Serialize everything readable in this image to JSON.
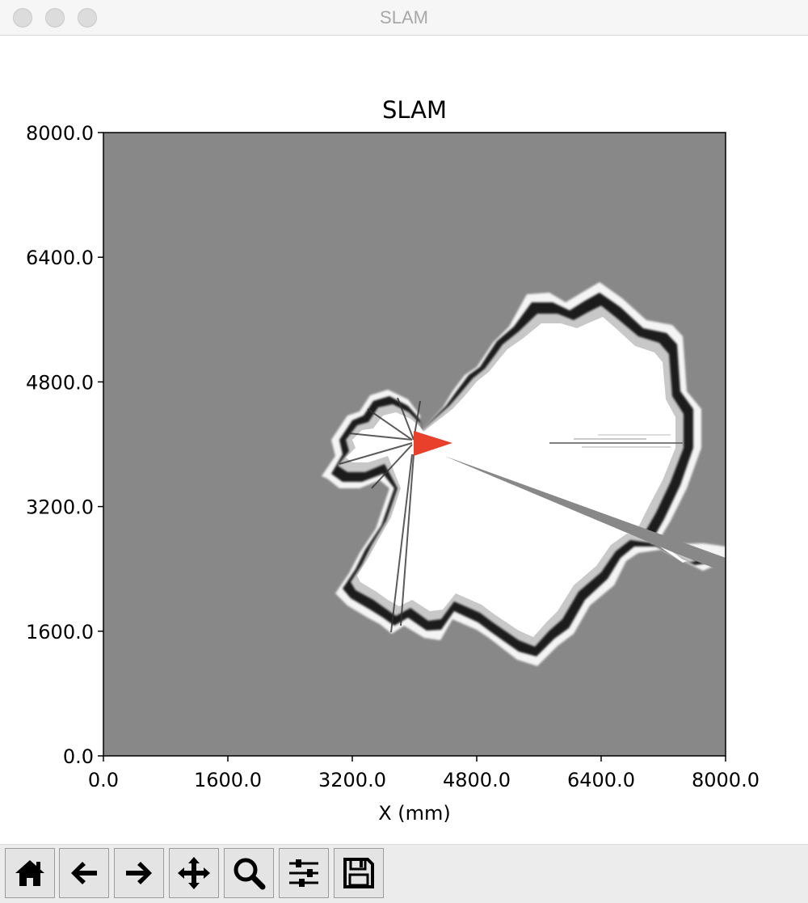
{
  "window": {
    "title": "SLAM"
  },
  "chart_data": {
    "type": "heatmap",
    "title": "SLAM",
    "xlabel": "X (mm)",
    "ylabel": "",
    "xlim": [
      0,
      8000
    ],
    "ylim": [
      0,
      8000
    ],
    "x_ticks": [
      "0.0",
      "1600.0",
      "3200.0",
      "4800.0",
      "6400.0",
      "8000.0"
    ],
    "y_ticks": [
      "0.0",
      "1600.0",
      "3200.0",
      "4800.0",
      "6400.0",
      "8000.0"
    ],
    "x_tick_values": [
      0,
      1600,
      3200,
      4800,
      6400,
      8000
    ],
    "y_tick_values": [
      0,
      1600,
      3200,
      4800,
      6400,
      8000
    ],
    "colormap": "gray",
    "unknown_color": "#888888",
    "robot": {
      "x_mm": 4000,
      "y_mm": 4000,
      "heading": "east",
      "color": "#e8402a"
    }
  },
  "toolbar": {
    "buttons": [
      {
        "name": "home",
        "icon": "home-icon"
      },
      {
        "name": "back",
        "icon": "arrow-left-icon"
      },
      {
        "name": "forward",
        "icon": "arrow-right-icon"
      },
      {
        "name": "pan",
        "icon": "move-icon"
      },
      {
        "name": "zoom",
        "icon": "zoom-icon"
      },
      {
        "name": "configure-subplots",
        "icon": "sliders-icon"
      },
      {
        "name": "save",
        "icon": "floppy-disk-icon"
      }
    ]
  }
}
